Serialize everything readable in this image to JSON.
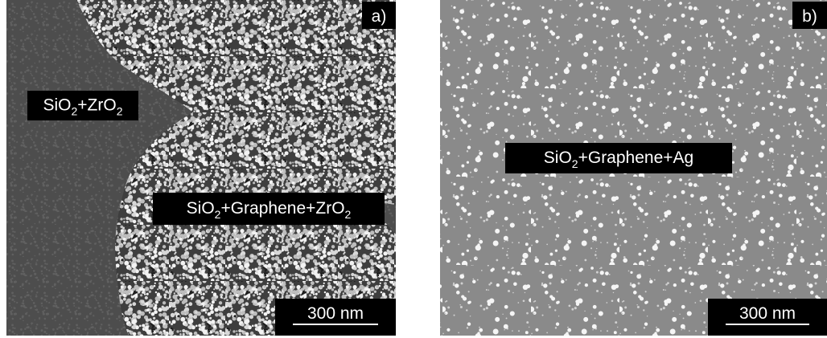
{
  "panels": [
    {
      "tag": "a)",
      "labels": [
        {
          "parts": [
            {
              "text": "SiO"
            },
            {
              "text": "2",
              "sub": true
            },
            {
              "text": "+ZrO"
            },
            {
              "text": "2",
              "sub": true
            }
          ]
        },
        {
          "parts": [
            {
              "text": "SiO"
            },
            {
              "text": "2",
              "sub": true
            },
            {
              "text": "+Graphene+ZrO"
            },
            {
              "text": "2",
              "sub": true
            }
          ]
        }
      ],
      "scale_bar": "300 nm"
    },
    {
      "tag": "b)",
      "labels": [
        {
          "parts": [
            {
              "text": "SiO"
            },
            {
              "text": "2",
              "sub": true
            },
            {
              "text": "+Graphene+Ag"
            }
          ]
        }
      ],
      "scale_bar": "300 nm"
    }
  ]
}
